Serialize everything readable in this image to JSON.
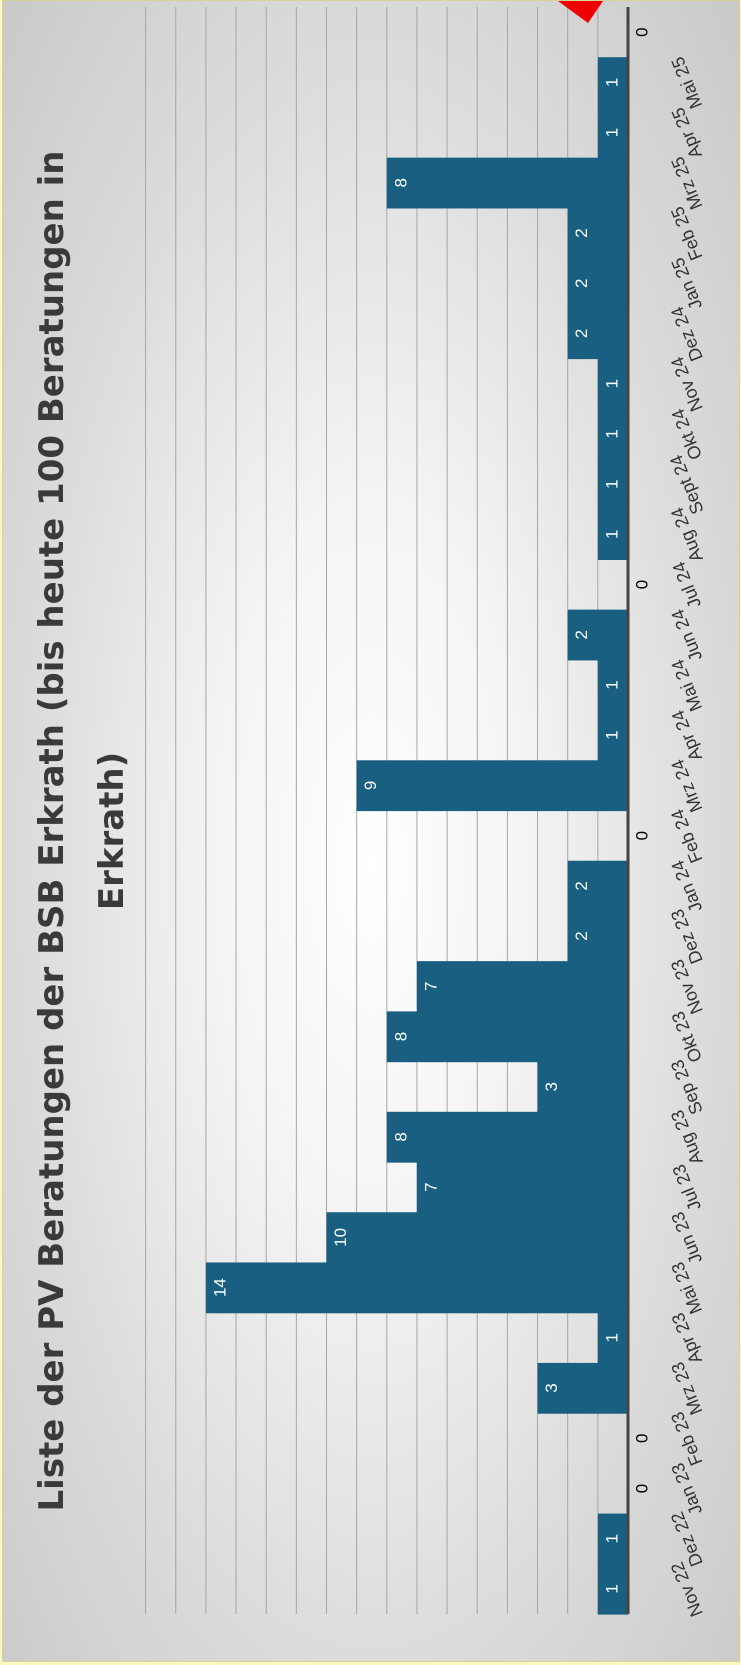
{
  "colors": {
    "bar": "#185f82",
    "label_on_bar": "#ffffff",
    "label_off_bar": "#000000",
    "grid": "#a6a6a6",
    "baseline": "#444444",
    "marker": "#ee0000",
    "page_background": "#fbf7c4"
  },
  "chart_data": {
    "type": "bar",
    "orientation": "rotated 90° clockwise (categories run bottom to top)",
    "title": "Liste der PV Beratungen der BSB Erkrath (bis heute 100 Beratungen in Erkrath)",
    "title_lines": [
      "Liste der PV Beratungen der BSB Erkrath (bis heute 100 Beratungen in",
      "Erkrath)"
    ],
    "xlabel": "",
    "ylabel": "",
    "ylim": [
      0,
      16
    ],
    "grid": true,
    "legend": "none",
    "data_labels": true,
    "categories": [
      "Nov 22",
      "Dez 22",
      "Jan 23",
      "Feb 23",
      "Mrz 23",
      "Apr 23",
      "Mai 23",
      "Jun 23",
      "Jul 23",
      "Aug 23",
      "Sep 23",
      "Okt 23",
      "Nov 23",
      "Dez 23",
      "Jan 24",
      "Feb 24",
      "Mrz 24",
      "Apr 24",
      "Mai 24",
      "Jun 24",
      "Jul 24",
      "Aug 24",
      "Sept 24",
      "Okt 24",
      "Nov 24",
      "Dez 24",
      "Jan 25",
      "Feb 25",
      "Mrz 25",
      "Apr 25",
      "Mai 25",
      ""
    ],
    "values": [
      1,
      1,
      0,
      0,
      3,
      1,
      14,
      10,
      7,
      8,
      3,
      8,
      7,
      2,
      2,
      0,
      9,
      1,
      1,
      2,
      0,
      1,
      1,
      1,
      1,
      2,
      2,
      2,
      8,
      1,
      1,
      0
    ]
  }
}
